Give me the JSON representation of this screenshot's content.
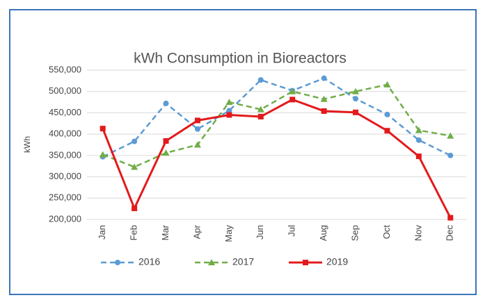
{
  "chart_data": {
    "type": "line",
    "title": "kWh Consumption in Bioreactors",
    "y_label": "kWh",
    "categories": [
      "Jan",
      "Feb",
      "Mar",
      "Apr",
      "May",
      "Jun",
      "Jul",
      "Aug",
      "Sep",
      "Oct",
      "Nov",
      "Dec"
    ],
    "series": [
      {
        "name": "2016",
        "color": "#5b9bd5",
        "style": "dashed",
        "marker": "circle",
        "values": [
          347000,
          383000,
          472000,
          412000,
          455000,
          527000,
          502000,
          531000,
          483000,
          446000,
          386000,
          350000
        ]
      },
      {
        "name": "2017",
        "color": "#70ad47",
        "style": "dashed",
        "marker": "triangle",
        "values": [
          352000,
          323000,
          356000,
          375000,
          475000,
          458000,
          500000,
          482000,
          500000,
          516000,
          409000,
          396000
        ]
      },
      {
        "name": "2019",
        "color": "#e31a1c",
        "style": "solid",
        "marker": "square",
        "values": [
          413000,
          226000,
          384000,
          432000,
          445000,
          441000,
          481000,
          454000,
          451000,
          408000,
          348000,
          204000
        ]
      }
    ],
    "ylim": [
      200000,
      550000
    ],
    "yticks": [
      {
        "value": 200000,
        "label": "200,000"
      },
      {
        "value": 250000,
        "label": "250,000"
      },
      {
        "value": 300000,
        "label": "300,000"
      },
      {
        "value": 350000,
        "label": "350,000"
      },
      {
        "value": 400000,
        "label": "400,000"
      },
      {
        "value": 450000,
        "label": "450,000"
      },
      {
        "value": 500000,
        "label": "500,000"
      },
      {
        "value": 550000,
        "label": "550,000"
      }
    ],
    "grid": true,
    "legend": "bottom"
  }
}
